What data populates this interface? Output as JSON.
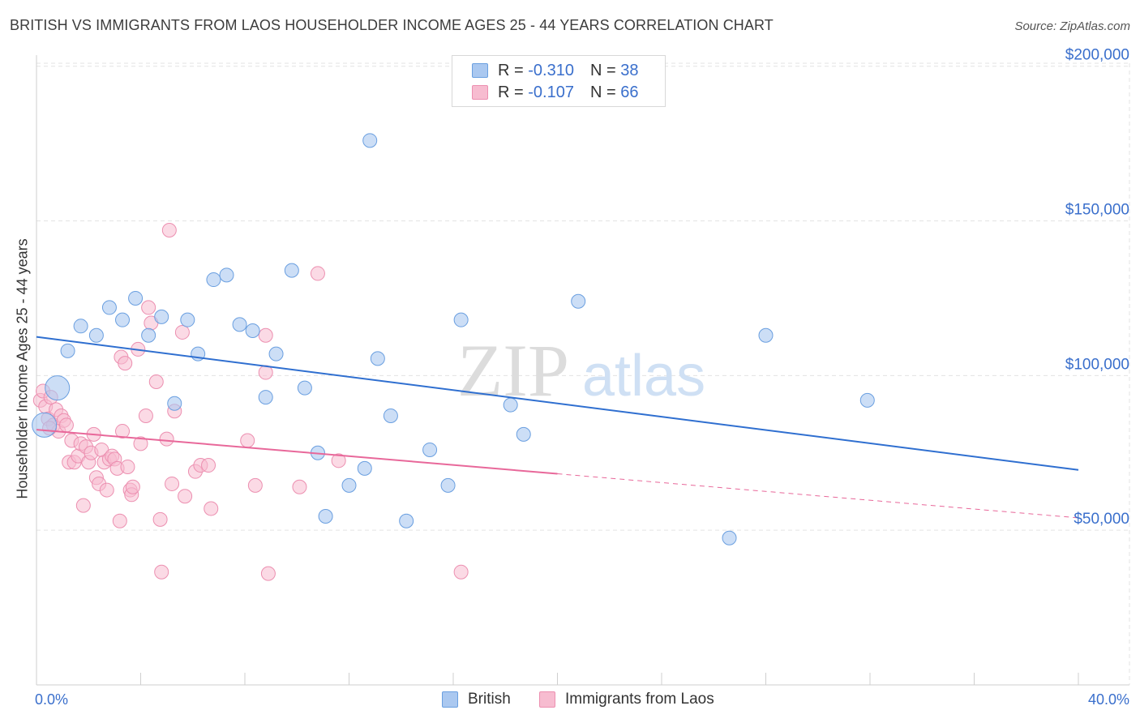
{
  "title": "BRITISH VS IMMIGRANTS FROM LAOS HOUSEHOLDER INCOME AGES 25 - 44 YEARS CORRELATION CHART",
  "source": "Source: ZipAtlas.com",
  "watermark": {
    "zip": "ZIP",
    "atlas": "atlas"
  },
  "legend": {
    "british": {
      "r_label": "R = ",
      "r_value": "-0.310",
      "n_label": "N = ",
      "n_value": "38"
    },
    "laos": {
      "r_label": "R = ",
      "r_value": "-0.107",
      "n_label": "N = ",
      "n_value": "66"
    }
  },
  "bottom_legend": {
    "british": "British",
    "laos": "Immigrants from Laos"
  },
  "colors": {
    "british_fill": "#aac8f0",
    "british_stroke": "#6a9fe0",
    "british_line": "#2f6fd0",
    "laos_fill": "#f7bcd0",
    "laos_stroke": "#ec8fb0",
    "laos_line": "#e8689a",
    "axis_label": "#3a6fcc",
    "grid": "#e3e3e3"
  },
  "chart_data": {
    "type": "scatter",
    "title": "BRITISH VS IMMIGRANTS FROM LAOS HOUSEHOLDER INCOME AGES 25 - 44 YEARS CORRELATION CHART",
    "xlabel": "",
    "ylabel": "Householder Income Ages 25 - 44 years",
    "xlim": [
      0,
      40
    ],
    "ylim": [
      0,
      205000
    ],
    "x_tick_labels": [
      "0.0%",
      "40.0%"
    ],
    "y_ticks": [
      50000,
      100000,
      150000,
      200000
    ],
    "y_tick_labels": [
      "$50,000",
      "$100,000",
      "$150,000",
      "$200,000"
    ],
    "grid": true,
    "legend_position": "top-center",
    "series": [
      {
        "name": "British",
        "r": -0.31,
        "n": 38,
        "trend": {
          "x": [
            0,
            40
          ],
          "y": [
            112500,
            69500
          ],
          "dashed_from": null
        },
        "points": [
          {
            "x": 0.3,
            "y": 84000,
            "big": true
          },
          {
            "x": 0.8,
            "y": 96000,
            "big": true
          },
          {
            "x": 1.2,
            "y": 108000
          },
          {
            "x": 1.7,
            "y": 116000
          },
          {
            "x": 2.3,
            "y": 113000
          },
          {
            "x": 2.8,
            "y": 122000
          },
          {
            "x": 3.3,
            "y": 118000
          },
          {
            "x": 3.8,
            "y": 125000
          },
          {
            "x": 4.3,
            "y": 113000
          },
          {
            "x": 4.8,
            "y": 119000
          },
          {
            "x": 5.3,
            "y": 91000
          },
          {
            "x": 5.8,
            "y": 118000
          },
          {
            "x": 6.2,
            "y": 107000
          },
          {
            "x": 6.8,
            "y": 131000
          },
          {
            "x": 7.3,
            "y": 132500
          },
          {
            "x": 7.8,
            "y": 116500
          },
          {
            "x": 8.3,
            "y": 114500
          },
          {
            "x": 8.8,
            "y": 93000
          },
          {
            "x": 9.2,
            "y": 107000
          },
          {
            "x": 9.8,
            "y": 134000
          },
          {
            "x": 10.3,
            "y": 96000
          },
          {
            "x": 10.8,
            "y": 75000
          },
          {
            "x": 11.1,
            "y": 54500
          },
          {
            "x": 12.0,
            "y": 64500
          },
          {
            "x": 12.8,
            "y": 176000
          },
          {
            "x": 12.6,
            "y": 70000
          },
          {
            "x": 13.1,
            "y": 105500
          },
          {
            "x": 13.6,
            "y": 87000
          },
          {
            "x": 14.2,
            "y": 53000
          },
          {
            "x": 15.1,
            "y": 76000
          },
          {
            "x": 15.8,
            "y": 64500
          },
          {
            "x": 16.3,
            "y": 118000
          },
          {
            "x": 18.2,
            "y": 90500
          },
          {
            "x": 18.7,
            "y": 81000
          },
          {
            "x": 20.8,
            "y": 124000
          },
          {
            "x": 26.6,
            "y": 47500
          },
          {
            "x": 28.0,
            "y": 113000
          },
          {
            "x": 31.9,
            "y": 92000
          }
        ]
      },
      {
        "name": "Immigrants from Laos",
        "r": -0.107,
        "n": 66,
        "trend": {
          "x": [
            0,
            40
          ],
          "y": [
            82500,
            54000
          ],
          "dashed_from": 20
        },
        "points": [
          {
            "x": 0.15,
            "y": 92000
          },
          {
            "x": 0.25,
            "y": 95000
          },
          {
            "x": 0.35,
            "y": 90000
          },
          {
            "x": 0.45,
            "y": 86000
          },
          {
            "x": 0.55,
            "y": 93000
          },
          {
            "x": 0.65,
            "y": 84000
          },
          {
            "x": 0.75,
            "y": 89000
          },
          {
            "x": 0.85,
            "y": 82000
          },
          {
            "x": 0.95,
            "y": 87000
          },
          {
            "x": 1.05,
            "y": 85500
          },
          {
            "x": 1.15,
            "y": 84000
          },
          {
            "x": 1.25,
            "y": 72000
          },
          {
            "x": 1.35,
            "y": 79000
          },
          {
            "x": 1.45,
            "y": 72000
          },
          {
            "x": 1.6,
            "y": 74000
          },
          {
            "x": 1.7,
            "y": 78000
          },
          {
            "x": 1.8,
            "y": 58000
          },
          {
            "x": 1.9,
            "y": 77000
          },
          {
            "x": 2.0,
            "y": 72000
          },
          {
            "x": 2.1,
            "y": 75000
          },
          {
            "x": 2.2,
            "y": 81000
          },
          {
            "x": 2.3,
            "y": 67000
          },
          {
            "x": 2.4,
            "y": 65000
          },
          {
            "x": 2.5,
            "y": 76000
          },
          {
            "x": 2.6,
            "y": 72000
          },
          {
            "x": 2.7,
            "y": 63000
          },
          {
            "x": 2.8,
            "y": 73000
          },
          {
            "x": 2.9,
            "y": 74000
          },
          {
            "x": 3.0,
            "y": 73000
          },
          {
            "x": 3.1,
            "y": 70000
          },
          {
            "x": 3.2,
            "y": 53000
          },
          {
            "x": 3.25,
            "y": 106000
          },
          {
            "x": 3.3,
            "y": 82000
          },
          {
            "x": 3.4,
            "y": 104000
          },
          {
            "x": 3.5,
            "y": 70500
          },
          {
            "x": 3.6,
            "y": 63000
          },
          {
            "x": 3.65,
            "y": 61500
          },
          {
            "x": 3.7,
            "y": 64000
          },
          {
            "x": 3.9,
            "y": 108500
          },
          {
            "x": 4.0,
            "y": 78000
          },
          {
            "x": 4.2,
            "y": 87000
          },
          {
            "x": 4.3,
            "y": 122000
          },
          {
            "x": 4.4,
            "y": 117000
          },
          {
            "x": 4.6,
            "y": 98000
          },
          {
            "x": 4.75,
            "y": 53500
          },
          {
            "x": 4.8,
            "y": 36500
          },
          {
            "x": 5.1,
            "y": 147000
          },
          {
            "x": 5.0,
            "y": 79500
          },
          {
            "x": 5.2,
            "y": 65000
          },
          {
            "x": 5.3,
            "y": 88500
          },
          {
            "x": 5.6,
            "y": 114000
          },
          {
            "x": 5.7,
            "y": 61000
          },
          {
            "x": 6.1,
            "y": 69000
          },
          {
            "x": 6.3,
            "y": 71000
          },
          {
            "x": 6.6,
            "y": 71000
          },
          {
            "x": 6.7,
            "y": 57000
          },
          {
            "x": 8.1,
            "y": 79000
          },
          {
            "x": 8.4,
            "y": 64500
          },
          {
            "x": 8.8,
            "y": 101000
          },
          {
            "x": 8.8,
            "y": 113000
          },
          {
            "x": 8.9,
            "y": 36000
          },
          {
            "x": 10.1,
            "y": 64000
          },
          {
            "x": 10.8,
            "y": 133000
          },
          {
            "x": 11.6,
            "y": 72500
          },
          {
            "x": 16.3,
            "y": 36500
          },
          {
            "x": 0.5,
            "y": 83000
          }
        ]
      }
    ]
  }
}
